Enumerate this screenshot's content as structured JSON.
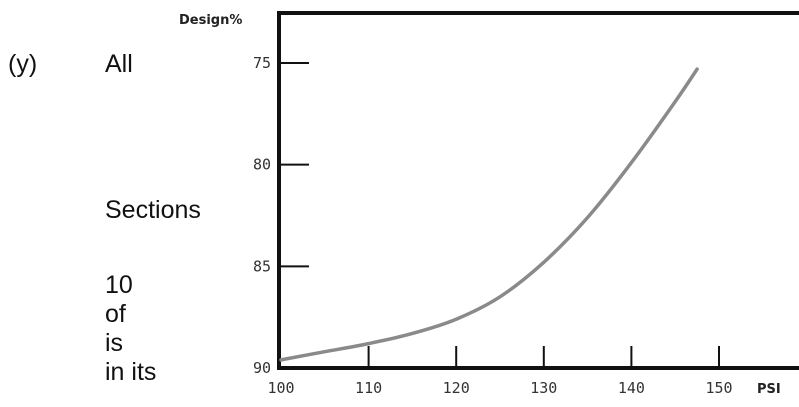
{
  "side_text": {
    "marker": "(y)",
    "line1": "All",
    "line2": "Sections",
    "line3": "10",
    "line4": "of",
    "line5": "is",
    "line6": "in its"
  },
  "colors": {
    "axis": "#111111",
    "curve": "#8a8a8a",
    "text": "#111111"
  },
  "chart_data": {
    "type": "line",
    "title": "",
    "xlabel": "PSI",
    "ylabel": "Design%",
    "xlim": [
      100,
      160
    ],
    "ylim": [
      90,
      72.5
    ],
    "y_reversed": true,
    "x_ticks": [
      100,
      110,
      120,
      130,
      140,
      150
    ],
    "x_tick_labels": [
      "100",
      "110",
      "120",
      "130",
      "140",
      "150"
    ],
    "y_ticks": [
      75,
      80,
      85,
      90
    ],
    "y_tick_labels": [
      "75",
      "80",
      "85",
      "90"
    ],
    "grid": false,
    "legend": "none",
    "series": [
      {
        "x": [
          100,
          105,
          110,
          115,
          120,
          125,
          130,
          135,
          140,
          145,
          147.5
        ],
        "y": [
          89.6,
          89.2,
          88.8,
          88.3,
          87.6,
          86.5,
          84.8,
          82.6,
          79.9,
          76.9,
          75.3
        ]
      }
    ]
  }
}
